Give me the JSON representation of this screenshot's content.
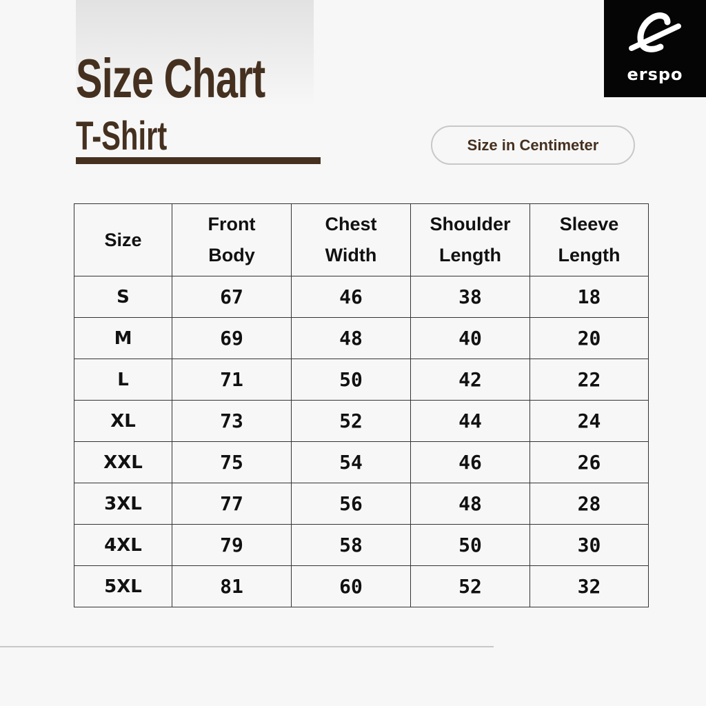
{
  "header": {
    "title": "Size Chart",
    "subtitle": "T-Shirt",
    "unit_badge": "Size in Centimeter"
  },
  "logo": {
    "text": "erspo",
    "icon": "erspo-e-logo",
    "color": "#050505"
  },
  "colors": {
    "accent": "#45301f",
    "background": "#f7f7f7"
  },
  "table": {
    "columns": [
      "Size",
      "Front\nBody",
      "Chest\nWidth",
      "Shoulder\nLength",
      "Sleeve\nLength"
    ],
    "rows": [
      [
        "S",
        "67",
        "46",
        "38",
        "18"
      ],
      [
        "M",
        "69",
        "48",
        "40",
        "20"
      ],
      [
        "L",
        "71",
        "50",
        "42",
        "22"
      ],
      [
        "XL",
        "73",
        "52",
        "44",
        "24"
      ],
      [
        "XXL",
        "75",
        "54",
        "46",
        "26"
      ],
      [
        "3XL",
        "77",
        "56",
        "48",
        "28"
      ],
      [
        "4XL",
        "79",
        "58",
        "50",
        "30"
      ],
      [
        "5XL",
        "81",
        "60",
        "52",
        "32"
      ]
    ]
  }
}
